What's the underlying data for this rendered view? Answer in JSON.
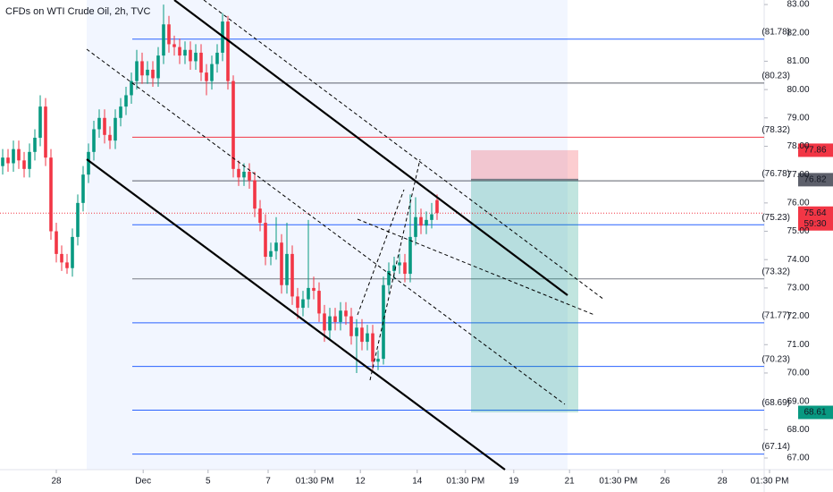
{
  "chart_data": {
    "type": "candlestick",
    "title": "CFDs on WTI Crude Oil, 2h, TVC",
    "up_color": "#089981",
    "down_color": "#f23645",
    "xlim": [
      0,
      147
    ],
    "xticks": [
      {
        "value": 10.5,
        "label": "28"
      },
      {
        "value": 26.7,
        "label": "Dec"
      },
      {
        "value": 38.8,
        "label": "5"
      },
      {
        "value": 50,
        "label": "7"
      },
      {
        "value": 58.7,
        "label": "01:30 PM"
      },
      {
        "value": 67.2,
        "label": "12"
      },
      {
        "value": 77.8,
        "label": "14"
      },
      {
        "value": 86.8,
        "label": "01:30 PM"
      },
      {
        "value": 95.8,
        "label": "19"
      },
      {
        "value": 106.2,
        "label": "21"
      },
      {
        "value": 115.3,
        "label": "01:30 PM"
      },
      {
        "value": 124,
        "label": "26"
      },
      {
        "value": 134.7,
        "label": "28"
      },
      {
        "value": 143.5,
        "label": "01:30 PM"
      }
    ],
    "ylim": [
      66.59,
      83.16
    ],
    "yticks": [
      {
        "value": 67,
        "label": "67.00"
      },
      {
        "value": 68,
        "label": "68.00"
      },
      {
        "value": 69,
        "label": "69.00"
      },
      {
        "value": 70,
        "label": "70.00"
      },
      {
        "value": 71,
        "label": "71.00"
      },
      {
        "value": 72,
        "label": "72.00"
      },
      {
        "value": 73,
        "label": "73.00"
      },
      {
        "value": 74,
        "label": "74.00"
      },
      {
        "value": 75,
        "label": "75.00"
      },
      {
        "value": 76,
        "label": "76.00"
      },
      {
        "value": 77,
        "label": "77.00"
      },
      {
        "value": 78,
        "label": "78.00"
      },
      {
        "value": 79,
        "label": "79.00"
      },
      {
        "value": 80,
        "label": "80.00"
      },
      {
        "value": 81,
        "label": "81.00"
      },
      {
        "value": 82,
        "label": "82.00"
      },
      {
        "value": 83,
        "label": "83.00"
      }
    ],
    "candles": [
      [
        77.3,
        77.9,
        77.0,
        77.6
      ],
      [
        77.6,
        77.9,
        77.1,
        77.4
      ],
      [
        77.4,
        78.2,
        77.1,
        77.9
      ],
      [
        77.9,
        78.2,
        77.2,
        77.5
      ],
      [
        77.5,
        77.8,
        76.9,
        77.2
      ],
      [
        77.2,
        78.1,
        76.9,
        77.8
      ],
      [
        77.8,
        78.6,
        77.5,
        78.3
      ],
      [
        78.3,
        79.8,
        78.0,
        79.4
      ],
      [
        79.4,
        79.7,
        77.3,
        77.6
      ],
      [
        77.6,
        77.9,
        74.7,
        75.0
      ],
      [
        75.0,
        75.3,
        73.9,
        74.2
      ],
      [
        74.2,
        74.5,
        73.6,
        73.9
      ],
      [
        73.9,
        74.2,
        73.5,
        73.7
      ],
      [
        73.7,
        75.1,
        73.4,
        74.8
      ],
      [
        74.8,
        76.3,
        74.5,
        76.0
      ],
      [
        76.0,
        77.3,
        75.7,
        77.0
      ],
      [
        77.0,
        78.1,
        76.7,
        77.8
      ],
      [
        77.8,
        78.9,
        77.5,
        78.6
      ],
      [
        78.6,
        79.3,
        78.3,
        79.0
      ],
      [
        79.0,
        79.3,
        78.1,
        78.4
      ],
      [
        78.4,
        78.7,
        77.9,
        78.2
      ],
      [
        78.2,
        79.3,
        77.9,
        79.0
      ],
      [
        79.0,
        79.7,
        78.7,
        79.4
      ],
      [
        79.4,
        80.1,
        79.1,
        79.8
      ],
      [
        79.8,
        80.6,
        79.5,
        80.3
      ],
      [
        80.3,
        81.4,
        80.0,
        81.0
      ],
      [
        81.0,
        81.3,
        80.2,
        80.5
      ],
      [
        80.5,
        81.0,
        80.2,
        80.7
      ],
      [
        80.7,
        81.0,
        80.1,
        80.4
      ],
      [
        80.4,
        81.5,
        80.1,
        81.2
      ],
      [
        81.2,
        83.0,
        80.9,
        82.3
      ],
      [
        82.3,
        82.6,
        81.3,
        81.6
      ],
      [
        81.6,
        81.9,
        81.2,
        81.5
      ],
      [
        81.5,
        81.8,
        80.9,
        81.2
      ],
      [
        81.2,
        81.7,
        80.9,
        81.4
      ],
      [
        81.4,
        81.7,
        80.7,
        81.0
      ],
      [
        81.0,
        81.6,
        80.7,
        81.3
      ],
      [
        81.3,
        81.6,
        80.3,
        80.6
      ],
      [
        80.6,
        80.9,
        79.8,
        80.3
      ],
      [
        80.3,
        81.2,
        80.0,
        80.9
      ],
      [
        80.9,
        81.6,
        80.6,
        81.3
      ],
      [
        81.3,
        82.7,
        81.0,
        82.4
      ],
      [
        82.4,
        82.6,
        80.0,
        80.3
      ],
      [
        80.3,
        80.5,
        76.9,
        77.2
      ],
      [
        77.2,
        77.5,
        76.6,
        76.9
      ],
      [
        76.9,
        77.4,
        76.6,
        77.1
      ],
      [
        77.1,
        77.4,
        76.5,
        76.8
      ],
      [
        76.8,
        77.1,
        75.5,
        75.8
      ],
      [
        75.8,
        76.1,
        75.0,
        75.3
      ],
      [
        75.3,
        75.6,
        73.8,
        74.1
      ],
      [
        74.1,
        74.6,
        73.8,
        74.3
      ],
      [
        74.3,
        75.5,
        74.0,
        74.6
      ],
      [
        74.6,
        74.9,
        72.8,
        73.1
      ],
      [
        73.1,
        75.3,
        72.8,
        74.2
      ],
      [
        74.2,
        74.5,
        72.4,
        72.7
      ],
      [
        72.7,
        73.0,
        71.9,
        72.3
      ],
      [
        72.3,
        72.9,
        72.0,
        72.6
      ],
      [
        72.6,
        75.4,
        72.3,
        73.0
      ],
      [
        73.0,
        73.4,
        72.6,
        72.9
      ],
      [
        72.9,
        73.2,
        71.8,
        72.1
      ],
      [
        72.1,
        72.4,
        71.1,
        71.5
      ],
      [
        71.5,
        72.3,
        71.2,
        72.0
      ],
      [
        72.0,
        72.3,
        71.5,
        71.8
      ],
      [
        71.8,
        72.5,
        71.5,
        72.2
      ],
      [
        72.2,
        72.5,
        71.7,
        72.0
      ],
      [
        72.0,
        72.3,
        71.0,
        71.3
      ],
      [
        71.3,
        71.9,
        70.0,
        71.6
      ],
      [
        71.6,
        71.9,
        70.8,
        71.1
      ],
      [
        71.1,
        71.7,
        70.8,
        71.4
      ],
      [
        71.4,
        71.7,
        70.1,
        70.4
      ],
      [
        70.4,
        70.8,
        70.1,
        70.5
      ],
      [
        70.5,
        73.4,
        70.3,
        73.1
      ],
      [
        73.1,
        73.9,
        72.8,
        73.6
      ],
      [
        73.6,
        74.1,
        73.3,
        73.8
      ],
      [
        73.8,
        74.2,
        73.5,
        73.9
      ],
      [
        73.9,
        74.2,
        73.2,
        73.5
      ],
      [
        73.5,
        76.3,
        73.2,
        74.8
      ],
      [
        74.8,
        76.2,
        74.5,
        75.5
      ],
      [
        75.5,
        75.8,
        74.9,
        75.2
      ],
      [
        75.2,
        75.7,
        74.9,
        75.4
      ],
      [
        75.4,
        76.0,
        75.1,
        75.6
      ],
      [
        76.1,
        76.3,
        75.4,
        75.64
      ]
    ],
    "levels": {
      "values": [
        81.78,
        80.23,
        78.32,
        76.78,
        75.23,
        73.32,
        71.77,
        70.23,
        68.69,
        67.14
      ],
      "value_labels": [
        "(81.78)",
        "(80.23)",
        "(78.32)",
        "(76.78)",
        "(75.23)",
        "(73.32)",
        "(71.77)",
        "(70.23)",
        "(68.69)",
        "(67.14)"
      ],
      "colors": [
        "#2962ff",
        "#5d606b",
        "#f23645",
        "#5d606b",
        "#2962ff",
        "#787b86",
        "#2962ff",
        "#2962ff",
        "#2962ff",
        "#2962ff"
      ]
    },
    "price_tags": [
      {
        "value": 77.86,
        "color": "#f23645"
      },
      {
        "value": 76.82,
        "color": "#5d606b"
      },
      {
        "value": 75.64,
        "color": "#f23645"
      },
      {
        "value": 68.61,
        "color": "#089981"
      }
    ],
    "countdown": "59:30"
  }
}
